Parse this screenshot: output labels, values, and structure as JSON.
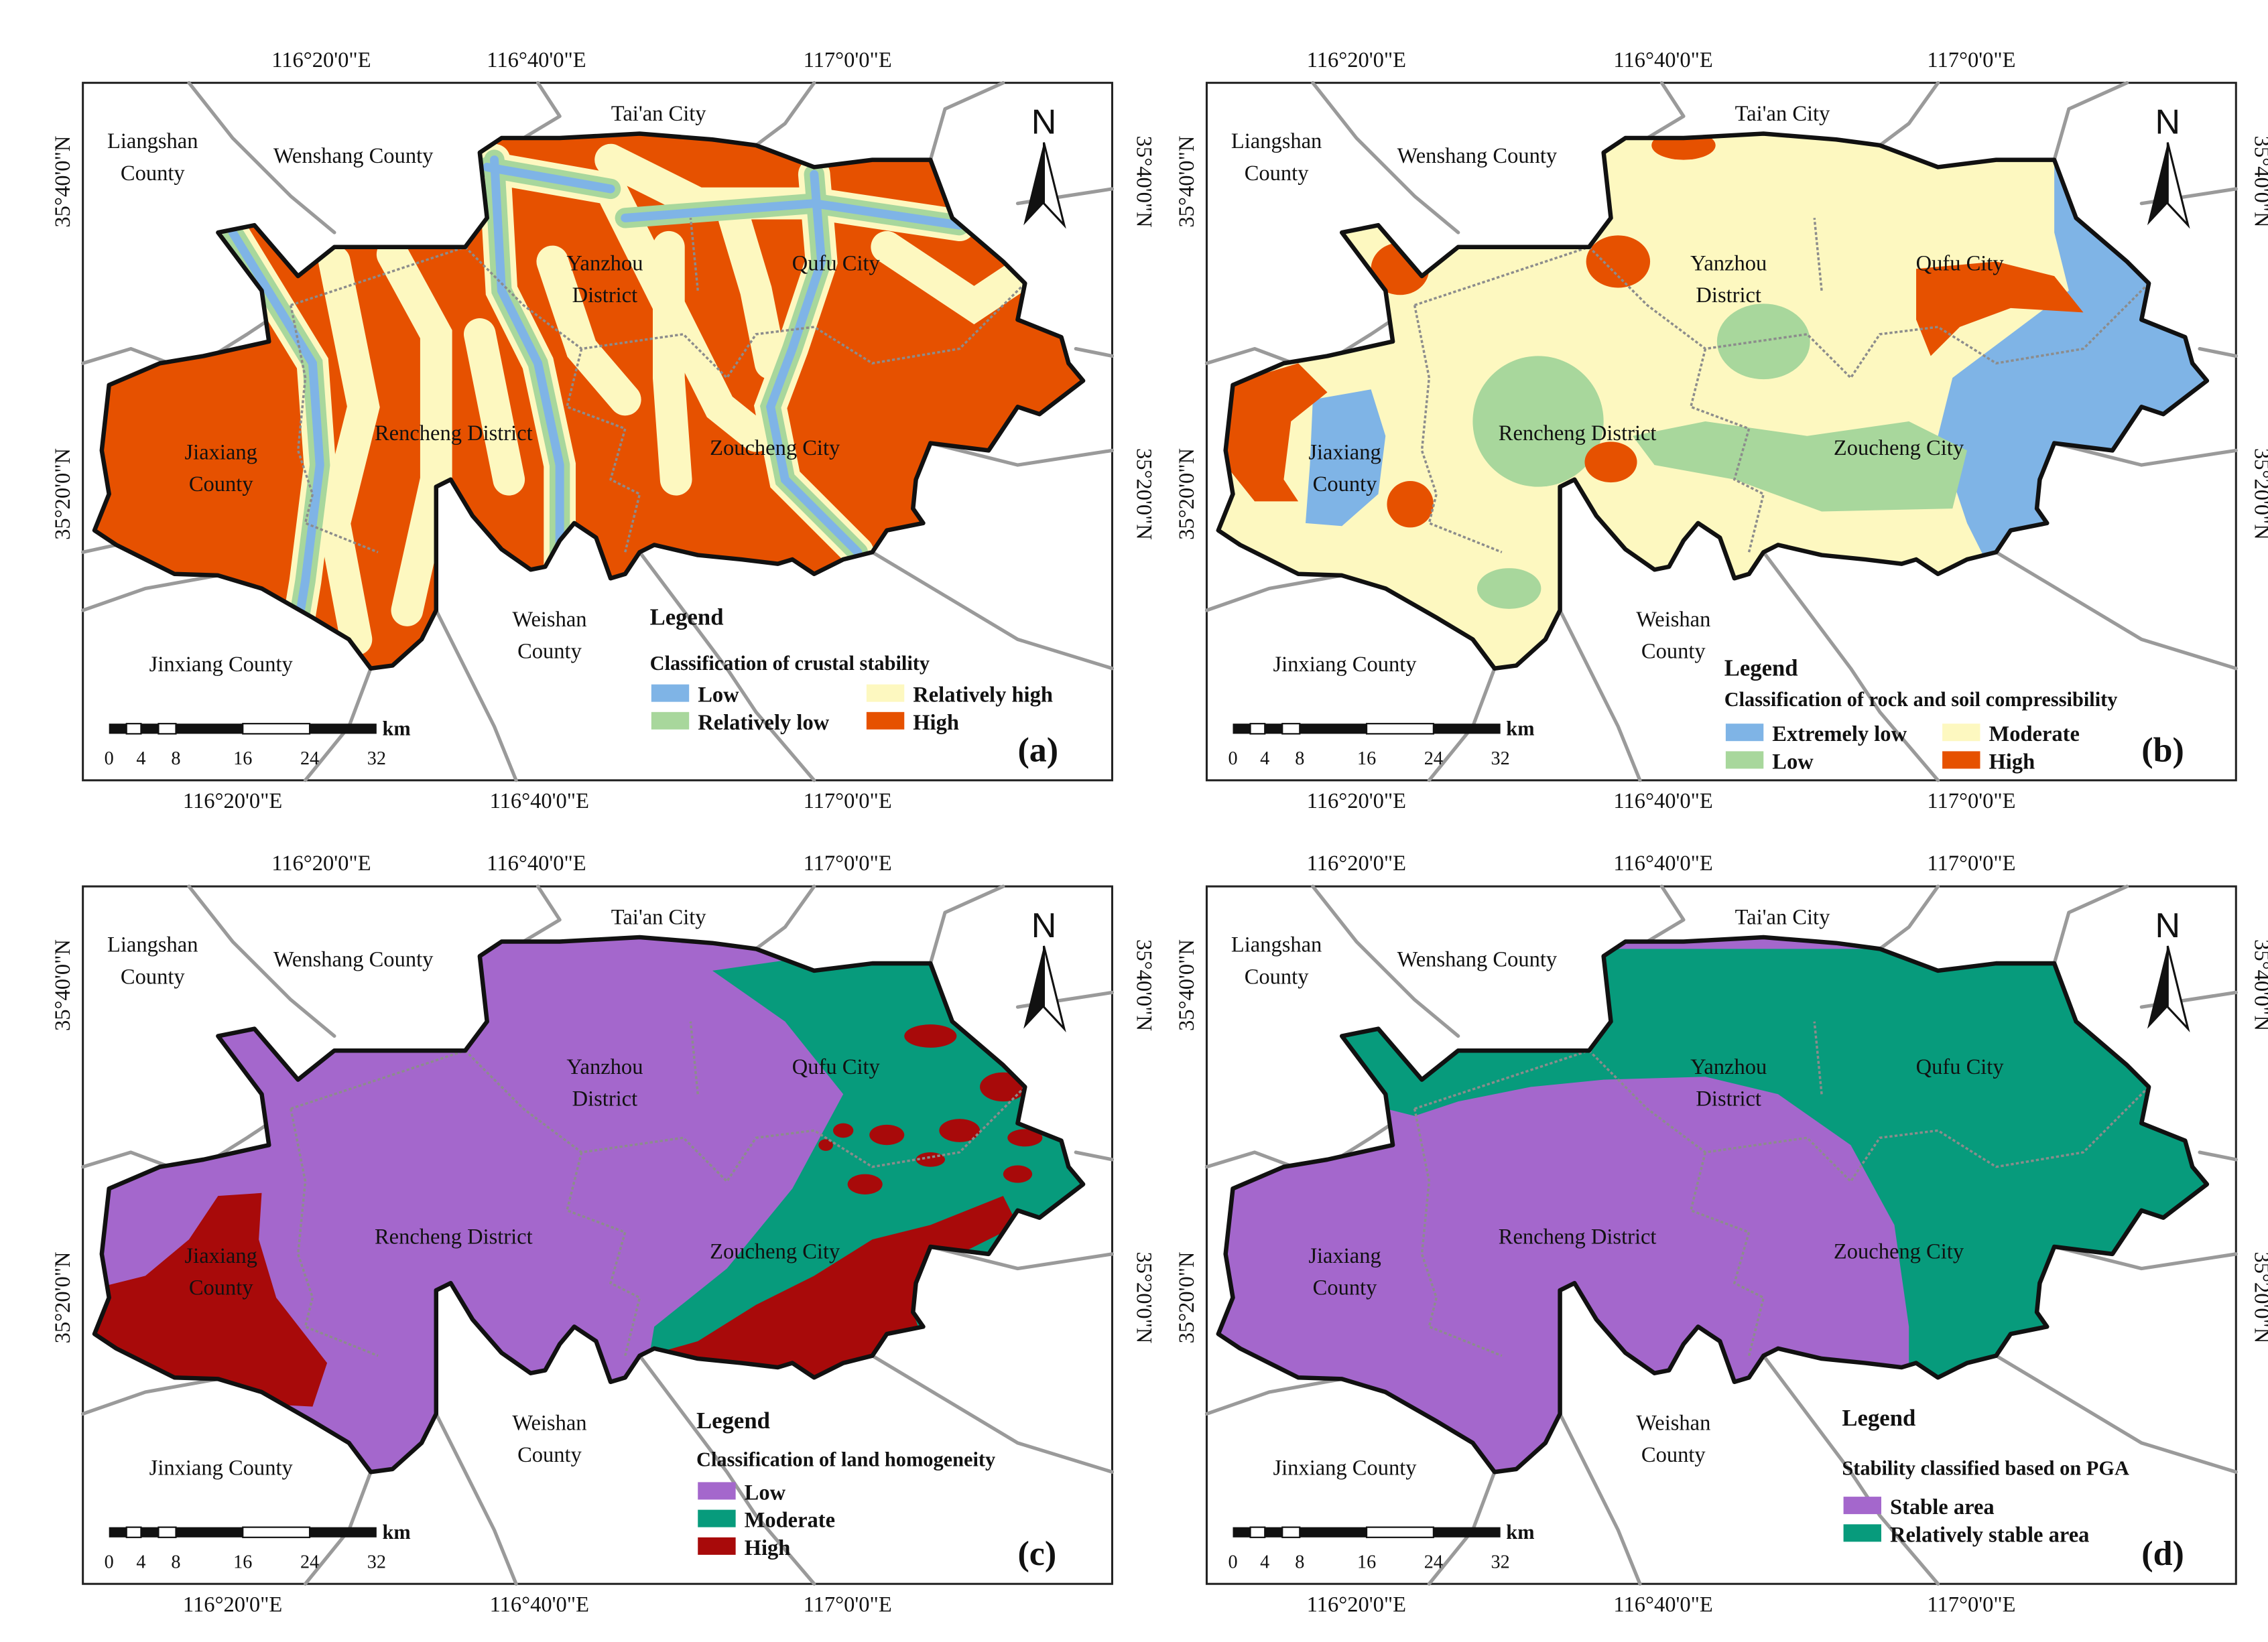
{
  "colors": {
    "crustal_low": "#7fb4e6",
    "crustal_relatively_low": "#a8d79c",
    "crustal_relatively_high": "#fdf8c0",
    "crustal_high": "#e65100",
    "comp_extremely_low": "#7fb4e6",
    "comp_low": "#a8d79c",
    "comp_moderate": "#fdf8c0",
    "comp_high": "#e65100",
    "homog_low": "#a467cc",
    "homog_moderate": "#079b7c",
    "homog_high": "#a80a0a",
    "pga_stable": "#a467cc",
    "pga_relatively_stable": "#079b7c"
  },
  "coordinates": {
    "lon_top": [
      "116°20'0\"E",
      "116°40'0\"E",
      "117°0'0\"E"
    ],
    "lon_bottom": [
      "116°20'0\"E",
      "116°40'0\"E",
      "117°0'0\"E"
    ],
    "lat": [
      "35°40'0\"N",
      "35°20'0\"N"
    ]
  },
  "places": {
    "tai_an": "Tai'an City",
    "liangshan_1": "Liangshan",
    "liangshan_2": "County",
    "wenshang": "Wenshang County",
    "yanzhou_1": "Yanzhou",
    "yanzhou_2": "District",
    "qufu": "Qufu City",
    "rencheng": "Rencheng District",
    "jiaxiang_1": "Jiaxiang",
    "jiaxiang_2": "County",
    "zoucheng": "Zoucheng City",
    "weishan_1": "Weishan",
    "weishan_2": "County",
    "jinxiang": "Jinxiang County"
  },
  "north_label": "N",
  "scale_bar": {
    "unit": "km",
    "ticks": [
      "0",
      "4",
      "8",
      "16",
      "24",
      "32"
    ]
  },
  "legend_title": "Legend",
  "panels": [
    {
      "label": "(a)",
      "legend_subtitle": "Classification of crustal stability",
      "legend_items": [
        "Low",
        "Relatively low",
        "Relatively high",
        "High"
      ]
    },
    {
      "label": "(b)",
      "legend_subtitle": "Classification of rock and soil compressibility",
      "legend_items": [
        "Extremely low",
        "Low",
        "Moderate",
        "High"
      ]
    },
    {
      "label": "(c)",
      "legend_subtitle": "Classification of land homogeneity",
      "legend_items": [
        "Low",
        "Moderate",
        "High"
      ]
    },
    {
      "label": "(d)",
      "legend_subtitle": "Stability classified based on PGA",
      "legend_items": [
        "Stable area",
        "Relatively stable area"
      ]
    }
  ]
}
